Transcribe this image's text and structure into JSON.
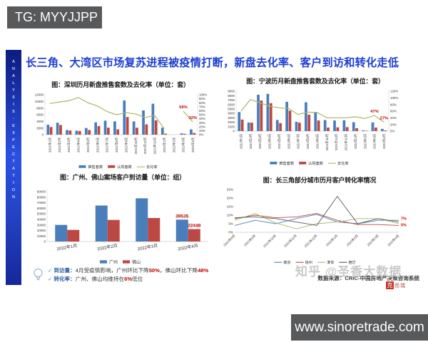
{
  "header": {
    "tg_badge": "TG: MYYJJPP"
  },
  "footer": {
    "website": "www.sinoretrade.com"
  },
  "sidebar": {
    "text": "ANALYSIS·EXPECTATION"
  },
  "slide": {
    "title": "长三角、大湾区市场复苏进程被疫情打断，新盘去化率、客户到访和转化走低",
    "title_color": "#1c3fd4"
  },
  "watermark": "知乎 @圣香大数据",
  "source": {
    "text": "数据来源：CRIC-中国房地产决策咨询系统",
    "logo_seal": "克",
    "logo_text": "而瑞"
  },
  "insights": {
    "check": "✓",
    "items": [
      {
        "label": "到访量：",
        "parts": [
          {
            "text": "4月受疫情影响，广州环比下降",
            "color": "#333333",
            "bold": false
          },
          {
            "text": "50%",
            "color": "#c00000",
            "bold": true
          },
          {
            "text": "，佛山环比下降",
            "color": "#333333",
            "bold": false
          },
          {
            "text": "48%",
            "color": "#c00000",
            "bold": true
          }
        ]
      },
      {
        "label": "转化率：",
        "parts": [
          {
            "text": "广州、佛山均维持在",
            "color": "#333333",
            "bold": false
          },
          {
            "text": "6%",
            "color": "#c00000",
            "bold": true
          },
          {
            "text": "低位",
            "color": "#333333",
            "bold": false
          }
        ]
      }
    ]
  },
  "chart_data": [
    {
      "id": "shenzhen",
      "type": "bar",
      "subtype": "combo-bar-line",
      "title": "图：深圳历月新盘推售套数及去化率（单位：套）",
      "categories": [
        "2021年1月",
        "2021年2月",
        "2021年3月",
        "2021年4月",
        "2021年5月",
        "2021年6月",
        "2021年7月",
        "2021年8月",
        "2021年9月",
        "2021年10月",
        "2021年11月",
        "2021年12月",
        "2022年1月",
        "2022年2月",
        "2022年3月",
        "2022年4月"
      ],
      "bar_series": [
        {
          "name": "推售套数",
          "color": "#4a7eba",
          "values": [
            3000,
            3600,
            1400,
            1200,
            2000,
            3700,
            4200,
            4000,
            10300,
            4000,
            7300,
            9300,
            2100,
            0,
            400,
            1600
          ]
        },
        {
          "name": "认购套数",
          "color": "#bd4743",
          "values": [
            2300,
            2900,
            1250,
            1100,
            1400,
            2600,
            2100,
            1600,
            5300,
            2100,
            3100,
            4300,
            300,
            0,
            250,
            500
          ]
        }
      ],
      "line_series": {
        "name": "去化率",
        "color": "#abb46a",
        "values": [
          78,
          82,
          85,
          93,
          80,
          72,
          58,
          50,
          55,
          52,
          43,
          48,
          15,
          null,
          59,
          32
        ]
      },
      "left_axis": {
        "min": 0,
        "max": 12000,
        "step": 2000
      },
      "right_axis": {
        "min": 0,
        "max": 100,
        "step": 10,
        "suffix": "%"
      },
      "point_labels": [
        {
          "index": 14,
          "text": "59%"
        },
        {
          "index": 15,
          "text": "32%"
        }
      ],
      "label_color": "#c00000"
    },
    {
      "id": "ningbo",
      "type": "bar",
      "subtype": "combo-bar-line",
      "title": "图：宁波历月新盘推售套数及去化率（单位：套）",
      "categories": [
        "2021年1月",
        "2021年2月",
        "2021年3月",
        "2021年4月",
        "2021年5月",
        "2021年6月",
        "2021年7月",
        "2021年8月",
        "2021年9月",
        "2021年10月",
        "2021年11月",
        "2021年12月",
        "2022年1月",
        "2022年2月",
        "2022年3月",
        "2022年4月"
      ],
      "bar_series": [
        {
          "name": "推售套数",
          "color": "#4a7eba",
          "values": [
            4300,
            1950,
            8200,
            8400,
            2500,
            6600,
            2100,
            6500,
            4300,
            2500,
            2400,
            2450,
            2000,
            150,
            1950,
            500
          ]
        },
        {
          "name": "认购套数",
          "color": "#bd4743",
          "values": [
            2600,
            1900,
            6900,
            6300,
            1800,
            4600,
            1900,
            3700,
            2400,
            800,
            850,
            900,
            650,
            80,
            800,
            150
          ]
        }
      ],
      "line_series": {
        "name": "去化率",
        "color": "#abb46a",
        "values": [
          60,
          95,
          85,
          75,
          70,
          68,
          50,
          57,
          56,
          40,
          40,
          40,
          43,
          38,
          47,
          27
        ]
      },
      "left_axis": {
        "min": 0,
        "max": 9000,
        "step": 1000
      },
      "right_axis": {
        "min": 0,
        "max": 120,
        "step": 20,
        "suffix": "%"
      },
      "point_labels": [
        {
          "index": 14,
          "text": "47%"
        },
        {
          "index": 15,
          "text": "27%"
        }
      ],
      "label_color": "#c00000"
    },
    {
      "id": "visits",
      "type": "bar",
      "subtype": "grouped-bar",
      "title": "图：广州、佛山案场客户到访量（单位：组）",
      "categories": [
        "2022年1月",
        "2022年2月",
        "2022年3月",
        "2022年4月"
      ],
      "series": [
        {
          "name": "广州",
          "color": "#4a7eba",
          "values": [
            30000,
            65000,
            78000,
            39535
          ]
        },
        {
          "name": "佛山",
          "color": "#bd4743",
          "values": [
            21000,
            39000,
            42500,
            22448
          ]
        }
      ],
      "y_axis": {
        "min": 0,
        "max": 90000,
        "step": 10000
      },
      "value_labels": [
        {
          "series": 0,
          "index": 3,
          "text": "39535"
        },
        {
          "series": 1,
          "index": 3,
          "text": "22448"
        }
      ],
      "label_color": "#c00000"
    },
    {
      "id": "conversion",
      "type": "line",
      "subtype": "multi-line",
      "title": "图：长三角部分城市历月客户转化率情况",
      "categories": [
        "2021年8月",
        "2021年9月",
        "2021年10月",
        "2021年11月",
        "2021年12月",
        "2022年1月",
        "2022年2月",
        "2022年3月",
        "2022年4月"
      ],
      "series": [
        {
          "name": "南京",
          "color": "#4a7eba",
          "values": [
            4,
            7,
            5,
            8,
            10.5,
            6,
            5,
            7,
            7
          ]
        },
        {
          "name": "徐州",
          "color": "#bd4743",
          "values": [
            8,
            10,
            8.5,
            9,
            11,
            7,
            4.5,
            4.5,
            4
          ]
        },
        {
          "name": "淮安",
          "color": "#abb46a",
          "values": [
            7,
            11,
            5.5,
            2,
            5,
            6,
            8,
            8,
            5
          ]
        },
        {
          "name": "宿迁",
          "color": "#555555",
          "values": [
            8.5,
            9,
            8,
            6,
            4,
            21,
            5,
            8,
            6
          ]
        }
      ],
      "y_axis": {
        "min": 0,
        "max": 25,
        "step": 5,
        "suffix": "%"
      },
      "end_labels": [
        {
          "text": "7%",
          "value": 7
        },
        {
          "text": "5%",
          "value": 5
        }
      ],
      "label_color": "#c00000"
    }
  ]
}
